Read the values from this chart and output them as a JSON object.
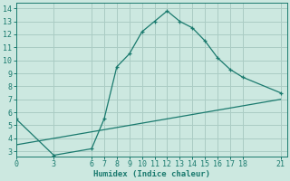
{
  "line1_x": [
    0,
    3,
    6,
    7,
    8,
    9,
    10,
    11,
    12,
    13,
    14,
    15,
    16,
    17,
    18,
    21
  ],
  "line1_y": [
    5.5,
    2.7,
    3.2,
    5.5,
    9.5,
    10.5,
    12.2,
    13.0,
    13.8,
    13.0,
    12.5,
    11.5,
    10.2,
    9.3,
    8.7,
    7.5
  ],
  "line2_x": [
    0,
    21
  ],
  "line2_y": [
    3.5,
    7.0
  ],
  "color": "#1a7a6e",
  "bg_color": "#cce8e0",
  "grid_color": "#aaccC4",
  "xlabel": "Humidex (Indice chaleur)",
  "xticks": [
    0,
    3,
    6,
    7,
    8,
    9,
    10,
    11,
    12,
    13,
    14,
    15,
    16,
    17,
    18,
    21
  ],
  "yticks": [
    3,
    4,
    5,
    6,
    7,
    8,
    9,
    10,
    11,
    12,
    13,
    14
  ],
  "xlim": [
    0,
    21.5
  ],
  "ylim": [
    2.6,
    14.4
  ],
  "label_fontsize": 6.5,
  "tick_fontsize": 6.0
}
